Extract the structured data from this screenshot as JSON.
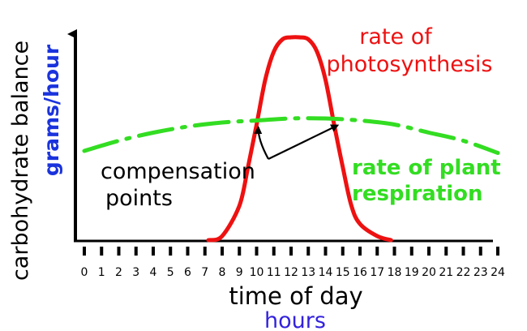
{
  "chart_data": {
    "type": "line",
    "xlabel": "time of day",
    "xunit": "hours",
    "ylabel": "carbohydrate balance",
    "yunit": "grams/hour",
    "x_ticks": [
      "0",
      "1",
      "2",
      "3",
      "4",
      "5",
      "6",
      "7",
      "8",
      "9",
      "10",
      "11",
      "12",
      "13",
      "14",
      "15",
      "16",
      "17",
      "18",
      "19",
      "20",
      "21",
      "22",
      "23",
      "24"
    ],
    "xlim": [
      0,
      24
    ],
    "ylim": [
      0,
      100
    ],
    "grid": false,
    "series": [
      {
        "name": "rate of photosynthesis",
        "color": "#ee1111",
        "style": "solid",
        "x": [
          7.2,
          8,
          9,
          9.5,
          10,
          10.5,
          11,
          11.5,
          12,
          12.5,
          13,
          13.5,
          14,
          14.5,
          15,
          15.5,
          16,
          17,
          17.8
        ],
        "y": [
          0,
          2,
          17,
          36,
          57,
          79,
          93,
          99,
          100,
          100,
          99,
          93,
          79,
          57,
          36,
          17,
          8,
          2,
          0
        ]
      },
      {
        "name": "rate of plant respiration",
        "color": "#33dd22",
        "style": "dashdot",
        "x": [
          0,
          2,
          4,
          6,
          8,
          10,
          12,
          14,
          16,
          18,
          20,
          22,
          24
        ],
        "y": [
          44,
          49,
          53,
          56,
          58,
          59,
          60,
          60,
          59,
          57,
          53,
          49,
          43
        ]
      }
    ],
    "annotation": {
      "text": [
        "compensation",
        "points"
      ],
      "targets": [
        {
          "x": 10.1,
          "y": 58
        },
        {
          "x": 14.7,
          "y": 59
        }
      ]
    }
  }
}
